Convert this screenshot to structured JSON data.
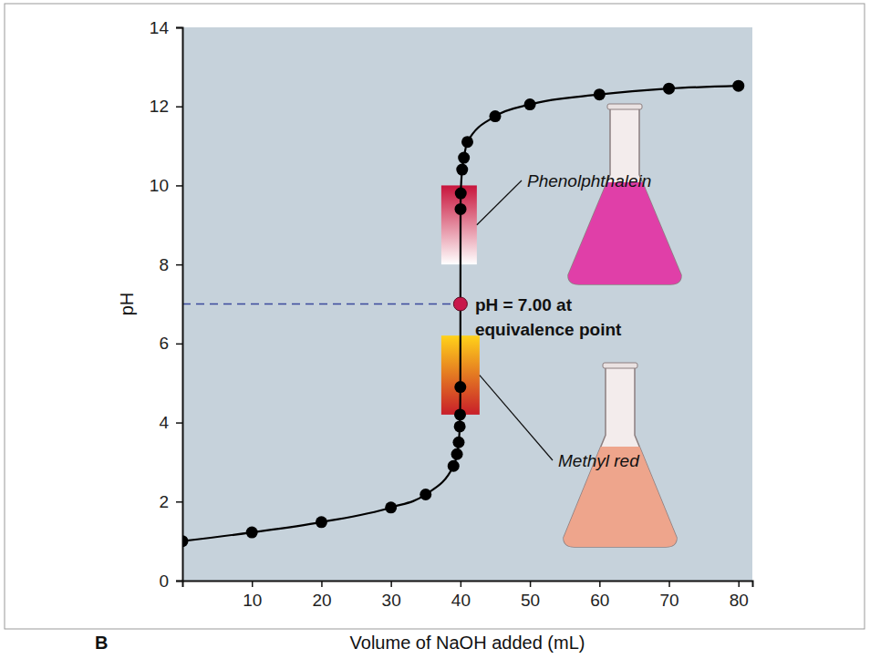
{
  "chart_data": {
    "type": "line",
    "x_label": "Volume of NaOH added (mL)",
    "y_label": "pH",
    "panel_label": "B",
    "xlim": [
      0,
      82
    ],
    "xticks": [
      10,
      20,
      30,
      40,
      50,
      60,
      70,
      80
    ],
    "ylim": [
      0,
      14
    ],
    "yticks": [
      0,
      2,
      4,
      6,
      8,
      10,
      12,
      14
    ],
    "grid": false,
    "x": [
      0,
      10,
      20,
      30,
      35,
      39,
      39.5,
      39.75,
      39.9,
      39.95,
      39.99,
      40,
      40.02,
      40.05,
      40.25,
      40.5,
      41,
      45,
      50,
      60,
      70,
      80
    ],
    "series": [
      {
        "color": "#000000",
        "marker": "circle",
        "line_style": "solid",
        "values": [
          1.0,
          1.22,
          1.48,
          1.85,
          2.18,
          2.9,
          3.2,
          3.5,
          3.9,
          4.2,
          4.9,
          7.0,
          9.4,
          9.8,
          10.4,
          10.7,
          11.1,
          11.75,
          12.05,
          12.3,
          12.45,
          12.52
        ]
      }
    ],
    "annotations": [
      {
        "text": [
          "pH = 7.00 at",
          "equivalence point"
        ],
        "x": 40,
        "y": 7.0,
        "color": "#c8174a",
        "line_style": "dashed"
      }
    ],
    "bands": [
      {
        "label": "Phenolphthalein",
        "from": 8,
        "to": 10,
        "colors": [
          "#c8143c",
          "#ffffff"
        ]
      },
      {
        "label": "Methyl red",
        "from": 4.2,
        "to": 6.2,
        "colors": [
          "#ffd21a",
          "#c81e2a"
        ]
      }
    ]
  }
}
